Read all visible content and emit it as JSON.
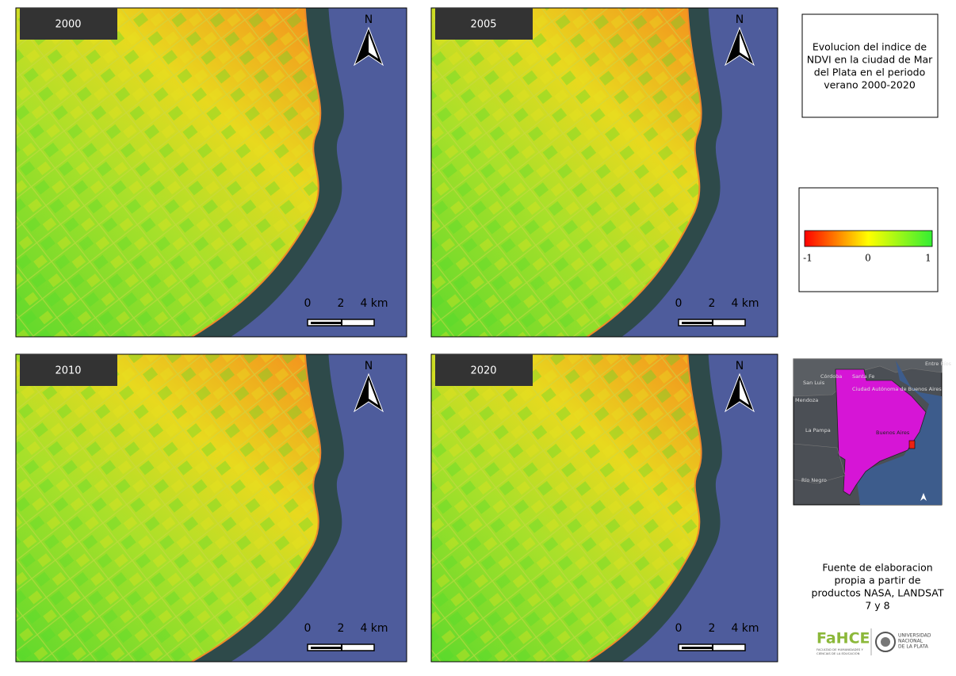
{
  "panels": [
    {
      "label": "2000",
      "north": "N",
      "scale": [
        "0",
        "2",
        "4 km"
      ]
    },
    {
      "label": "2005",
      "north": "N",
      "scale": [
        "0",
        "2",
        "4 km"
      ]
    },
    {
      "label": "2010",
      "north": "N",
      "scale": [
        "0",
        "2",
        "4 km"
      ]
    },
    {
      "label": "2020",
      "north": "N",
      "scale": [
        "0",
        "2",
        "4 km"
      ]
    }
  ],
  "title": [
    "Evolucion del indice de",
    "NDVI en la ciudad de Mar",
    "del Plata en el periodo",
    "verano 2000-2020"
  ],
  "legend": {
    "ticks": [
      -1,
      0,
      1
    ]
  },
  "inset": {
    "labels": [
      "Córdoba",
      "Santa Fe",
      "Entre Ríos",
      "San Luis",
      "Ciudad Autónoma de Buenos Aires",
      "Mendoza",
      "La Pampa",
      "Buenos Aires",
      "Río Negro"
    ]
  },
  "source": [
    "Fuente de elaboracion",
    "propia a partir de",
    "productos NASA, LANDSAT",
    "7 y 8"
  ],
  "logo": {
    "name": "FaHCE",
    "faculty": [
      "FACULTAD DE HUMANIDADES Y",
      "CIENCIAS DE LA EDUCACIÓN"
    ],
    "university": [
      "UNIVERSIDAD",
      "NACIONAL",
      "DE LA PLATA"
    ]
  }
}
